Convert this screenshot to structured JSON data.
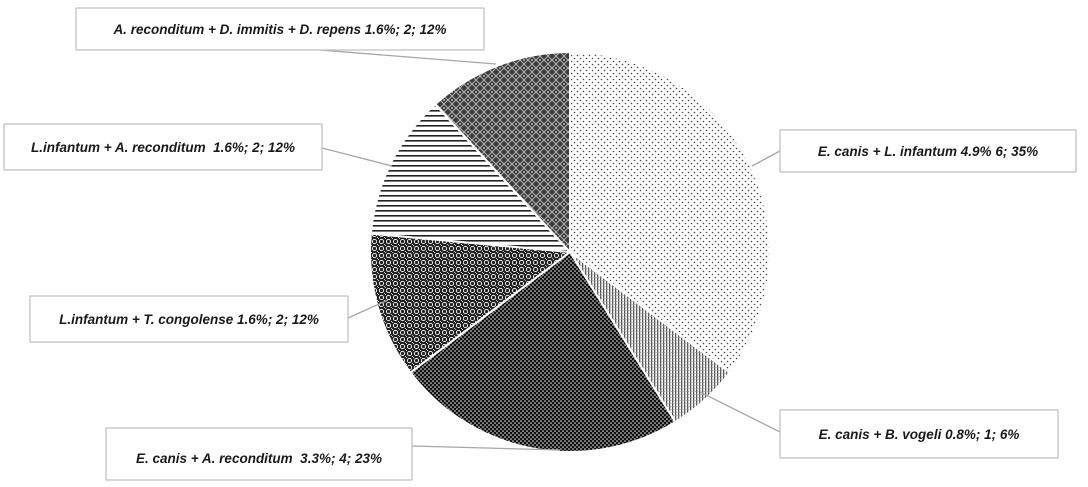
{
  "chart_data": {
    "type": "pie",
    "title": "",
    "slices": [
      {
        "label": "E. canis + L. infantum 4.9% 6; 35%",
        "value": 6,
        "percent": 35,
        "pattern": "fine-dots"
      },
      {
        "label": "E. canis + B. vogeli 0.8%; 1; 6%",
        "value": 1,
        "percent": 6,
        "pattern": "vertical-lines"
      },
      {
        "label": "E. canis + A. reconditum  3.3%; 4; 23%",
        "value": 4,
        "percent": 23,
        "pattern": "dense-dots"
      },
      {
        "label": "L.infantum + T. congolense 1.6%; 2; 12%",
        "value": 2,
        "percent": 12,
        "pattern": "circles"
      },
      {
        "label": "L.infantum + A. reconditum  1.6%; 2; 12%",
        "value": 2,
        "percent": 12,
        "pattern": "horizontal-lines"
      },
      {
        "label": "A. reconditum + D. immitis + D. repens 1.6%; 2; 12%",
        "value": 2,
        "percent": 12,
        "pattern": "diamond-grid"
      }
    ]
  }
}
